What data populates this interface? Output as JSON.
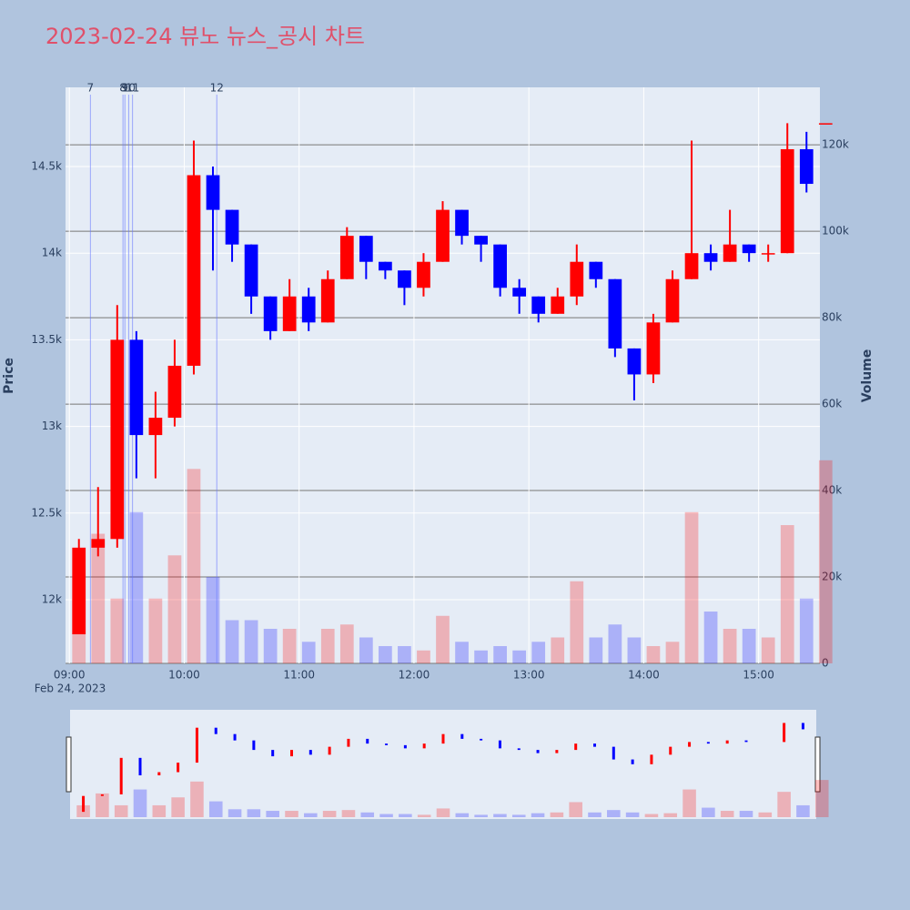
{
  "chart_data": {
    "type": "candlestick",
    "title": "2023-02-24 뷰노 뉴스_공시 차트",
    "y_title": "Price",
    "y2_title": "Volume",
    "x_date": "Feb 24, 2023",
    "x": [
      "09:00",
      "09:10",
      "09:20",
      "09:30",
      "09:40",
      "09:50",
      "10:00",
      "10:10",
      "10:20",
      "10:30",
      "10:40",
      "10:50",
      "11:00",
      "11:10",
      "11:20",
      "11:30",
      "11:40",
      "11:50",
      "12:00",
      "12:10",
      "12:20",
      "12:30",
      "12:40",
      "12:50",
      "13:00",
      "13:10",
      "13:20",
      "13:30",
      "13:40",
      "13:50",
      "14:00",
      "14:10",
      "14:20",
      "14:30",
      "14:40",
      "14:50",
      "15:00",
      "15:10",
      "15:20",
      "15:30"
    ],
    "open": [
      11800,
      12300,
      12350,
      13500,
      12950,
      13050,
      13350,
      14450,
      14250,
      14050,
      13750,
      13550,
      13750,
      13600,
      13850,
      14100,
      13950,
      13900,
      13800,
      13950,
      14250,
      14100,
      14050,
      13800,
      13750,
      13650,
      13750,
      13950,
      13850,
      13450,
      13300,
      13600,
      13850,
      14000,
      13950,
      14050,
      14000,
      14000,
      14600,
      14750
    ],
    "high": [
      12350,
      12650,
      13700,
      13550,
      13200,
      13500,
      14650,
      14500,
      14250,
      14050,
      13750,
      13850,
      13800,
      13900,
      14150,
      14100,
      13950,
      13900,
      14000,
      14300,
      14250,
      14100,
      14050,
      13850,
      13750,
      13800,
      14050,
      13950,
      13850,
      13450,
      13650,
      13900,
      14650,
      14050,
      14250,
      14050,
      14050,
      14750,
      14700,
      14750
    ],
    "low": [
      11800,
      12250,
      12300,
      12700,
      12700,
      13000,
      13300,
      13900,
      13950,
      13650,
      13500,
      13550,
      13550,
      13600,
      13850,
      13850,
      13850,
      13700,
      13750,
      13950,
      14050,
      13950,
      13750,
      13650,
      13600,
      13650,
      13700,
      13800,
      13400,
      13150,
      13250,
      13600,
      13850,
      13900,
      13950,
      13950,
      13950,
      14000,
      14350,
      14750
    ],
    "close": [
      12300,
      12350,
      13500,
      12950,
      13050,
      13350,
      14450,
      14250,
      14050,
      13750,
      13550,
      13750,
      13600,
      13850,
      14100,
      13950,
      13900,
      13800,
      13950,
      14250,
      14100,
      14050,
      13800,
      13750,
      13650,
      13750,
      13950,
      13850,
      13450,
      13300,
      13600,
      13850,
      14000,
      13950,
      14050,
      14000,
      14000,
      14600,
      14400,
      14750
    ],
    "volume": [
      15000,
      30000,
      15000,
      35000,
      15000,
      25000,
      45000,
      20000,
      10000,
      10000,
      8000,
      8000,
      5000,
      8000,
      9000,
      6000,
      4000,
      4000,
      3000,
      11000,
      5000,
      3000,
      4000,
      3000,
      5000,
      6000,
      19000,
      6000,
      9000,
      6000,
      4000,
      5000,
      35000,
      12000,
      8000,
      8000,
      6000,
      32000,
      15000,
      47000
    ],
    "up_color": "#ff0000",
    "down_color": "#0000ff",
    "xlim": [
      "08:58",
      "15:32"
    ],
    "xticks": [
      "09:00",
      "10:00",
      "11:00",
      "12:00",
      "13:00",
      "14:00",
      "15:00"
    ],
    "ylim": [
      11632,
      14957
    ],
    "yticks": [
      {
        "value": 12000,
        "label": "12k"
      },
      {
        "value": 12500,
        "label": "12.5k"
      },
      {
        "value": 13000,
        "label": "13k"
      },
      {
        "value": 13500,
        "label": "13.5k"
      },
      {
        "value": 14000,
        "label": "14k"
      },
      {
        "value": 14500,
        "label": "14.5k"
      }
    ],
    "y2lim": [
      0,
      133300
    ],
    "y2ticks": [
      0,
      {
        "value": 20000,
        "label": "20k"
      },
      {
        "value": 40000,
        "label": "40k"
      },
      {
        "value": 60000,
        "label": "60k"
      },
      {
        "value": 80000,
        "label": "80k"
      },
      {
        "value": 100000,
        "label": "100k"
      },
      {
        "value": 120000,
        "label": "120k"
      }
    ],
    "annotations": [
      {
        "x": "09:11",
        "text": "7"
      },
      {
        "x": "09:28",
        "text": "8"
      },
      {
        "x": "09:29",
        "text": "9"
      },
      {
        "x": "09:31",
        "text": "10"
      },
      {
        "x": "09:33",
        "text": "11"
      },
      {
        "x": "10:17",
        "text": "12"
      }
    ]
  }
}
